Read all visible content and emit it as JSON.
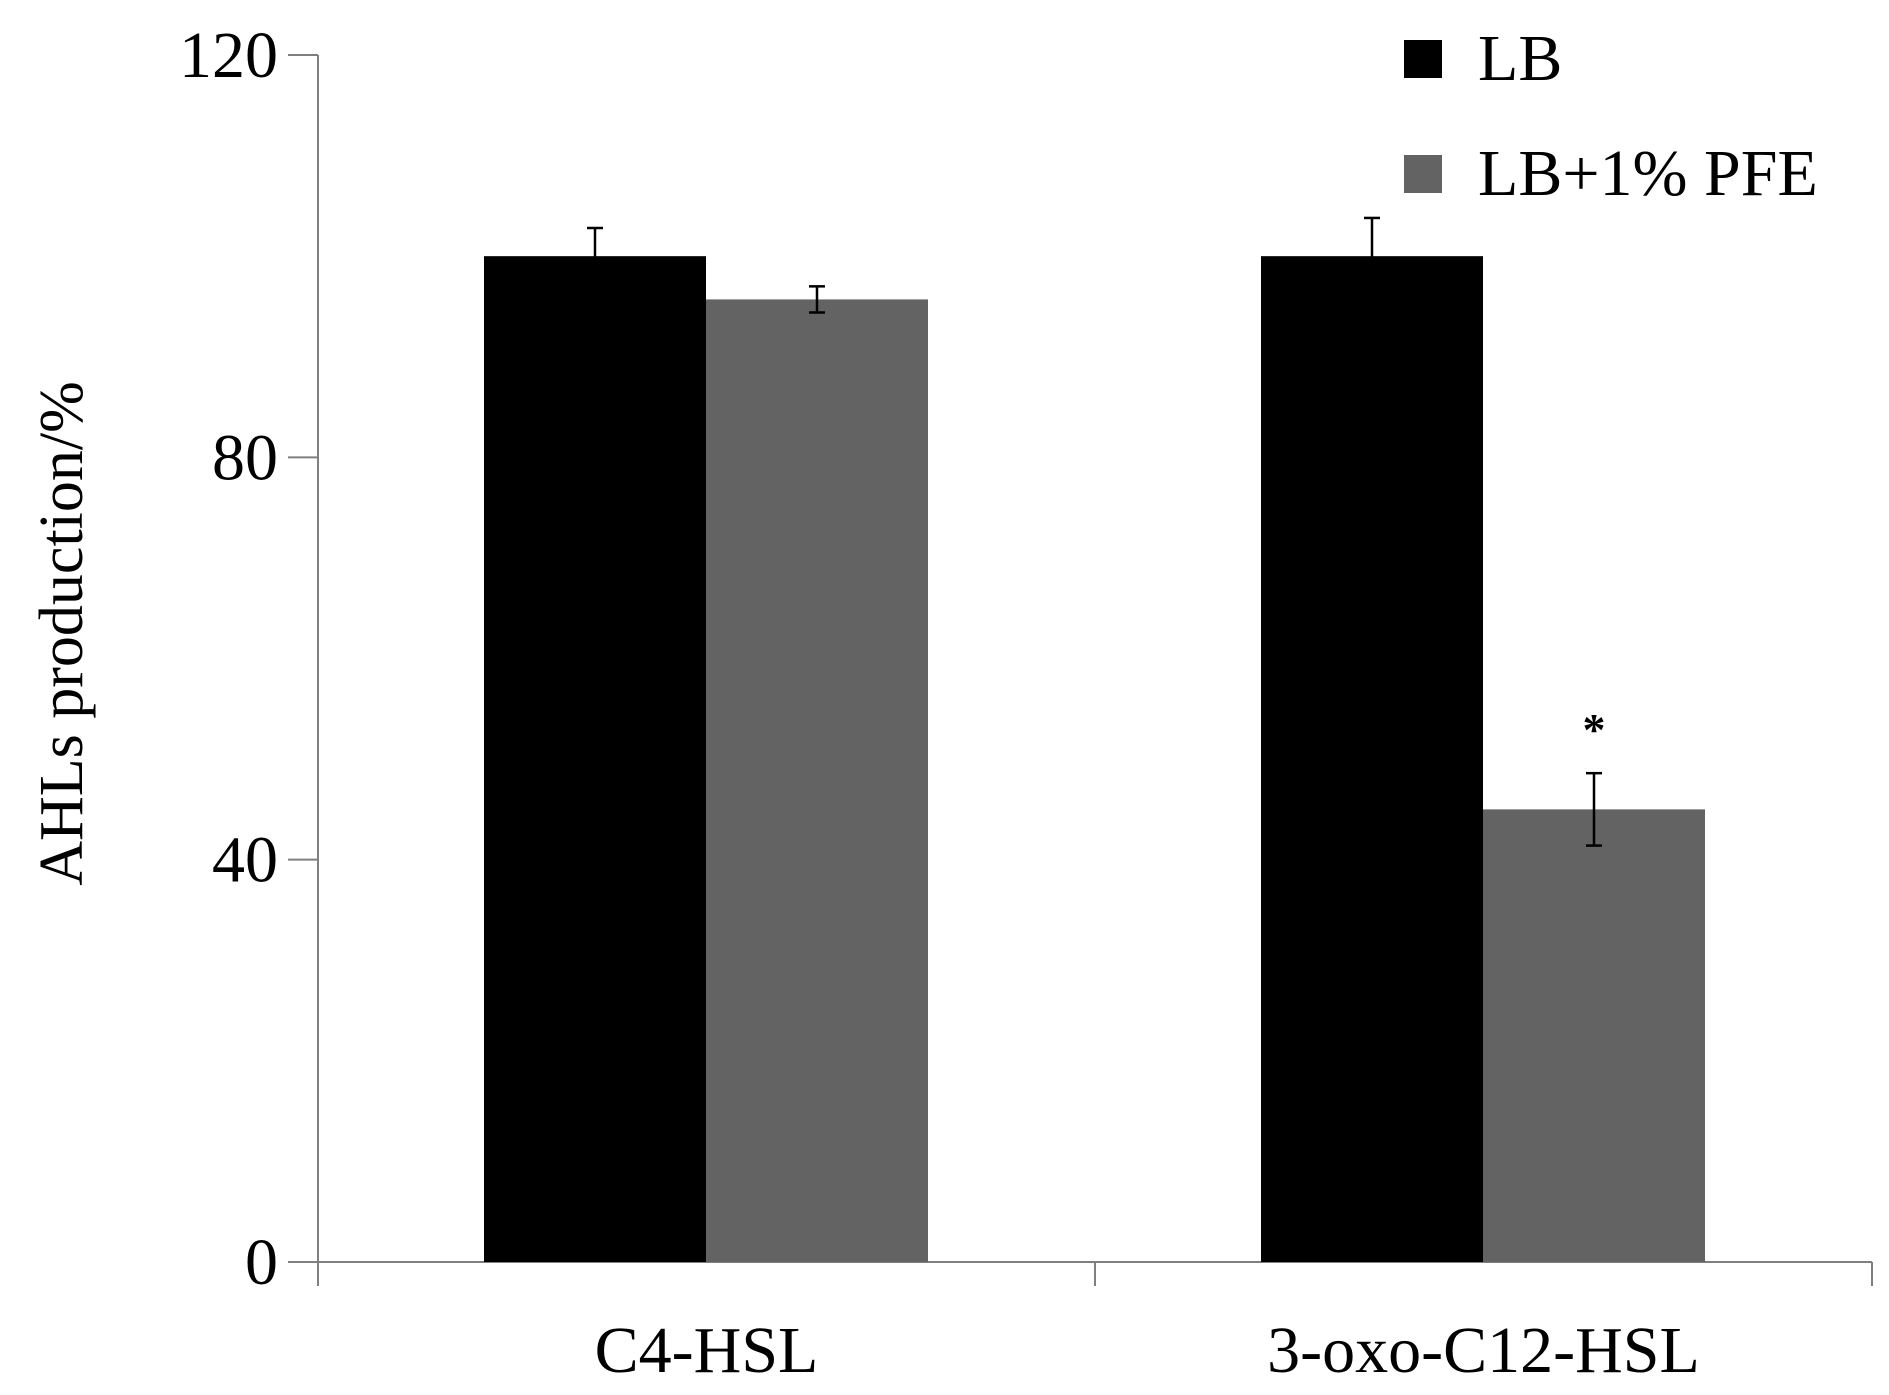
{
  "chart_data": {
    "type": "bar",
    "categories": [
      "C4-HSL",
      "3-oxo-C12-HSL"
    ],
    "series": [
      {
        "name": "LB",
        "color": "#000000",
        "values": [
          100,
          100
        ],
        "errors": [
          2.8,
          3.8
        ]
      },
      {
        "name": "LB+1% PFE",
        "color": "#636363",
        "values": [
          95.7,
          45
        ],
        "errors": [
          1.3,
          3.6
        ]
      }
    ],
    "xlabel": "",
    "ylabel": "AHLs production/%",
    "ylim": [
      0,
      120
    ],
    "yticks": [
      0,
      40,
      80,
      120
    ],
    "grid": false,
    "legend_position": "top-right",
    "annotations": [
      {
        "text": "*",
        "category": "3-oxo-C12-HSL",
        "series": "LB+1% PFE"
      }
    ]
  }
}
